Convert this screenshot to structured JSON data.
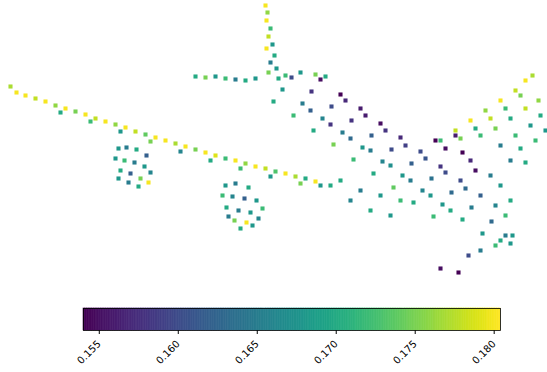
{
  "chart_data": {
    "type": "scatter",
    "marker": "square",
    "color": "viridis",
    "tick_labels": false,
    "xlim": [
      0,
      547
    ],
    "ylim": [
      300,
      0
    ],
    "x": [
      10,
      16,
      25,
      35,
      45,
      55,
      65,
      75,
      85,
      95,
      105,
      115,
      125,
      135,
      145,
      155,
      165,
      175,
      185,
      195,
      205,
      215,
      225,
      235,
      245,
      255,
      265,
      275,
      285,
      295,
      305,
      315,
      60,
      90,
      120,
      150,
      180,
      210,
      240,
      270,
      300,
      330,
      118,
      126,
      136,
      146,
      115,
      124,
      134,
      144,
      150,
      120,
      130,
      140,
      148,
      128,
      138,
      118,
      225,
      235,
      248,
      222,
      232,
      244,
      256,
      226,
      238,
      250,
      262,
      234,
      246,
      258,
      240,
      252,
      228,
      265,
      267,
      266,
      270,
      268,
      272,
      266,
      274,
      270,
      276,
      268,
      278,
      195,
      205,
      215,
      225,
      235,
      245,
      255,
      285,
      300,
      315,
      325,
      291,
      282,
      273,
      320,
      311,
      302,
      293,
      340,
      331,
      322,
      313,
      360,
      351,
      342,
      333,
      380,
      371,
      362,
      353,
      400,
      391,
      382,
      373,
      420,
      411,
      402,
      393,
      440,
      431,
      422,
      413,
      460,
      451,
      442,
      433,
      480,
      471,
      462,
      491,
      482,
      310,
      330,
      350,
      370,
      390,
      410,
      430,
      450,
      345,
      365,
      385,
      405,
      425,
      445,
      465,
      500,
      505,
      495,
      510,
      440,
      455,
      470,
      485,
      500,
      515,
      525,
      532,
      520,
      505,
      490,
      475,
      460,
      480,
      495,
      510,
      525,
      538,
      540,
      530,
      515,
      500,
      520,
      535,
      545,
      510,
      525,
      435,
      445,
      455,
      462,
      470,
      475,
      490,
      500,
      510,
      495,
      505,
      512,
      440,
      458,
      468,
      480,
      320,
      340,
      360,
      380,
      400,
      350,
      370,
      390
    ],
    "y": [
      86,
      92,
      95,
      98,
      101,
      105,
      108,
      111,
      114,
      118,
      121,
      124,
      127,
      131,
      134,
      137,
      140,
      143,
      146,
      149,
      152,
      155,
      158,
      160,
      163,
      166,
      168,
      171,
      173,
      176,
      178,
      181,
      112,
      121,
      131,
      141,
      151,
      160,
      168,
      176,
      183,
      185,
      148,
      147,
      149,
      155,
      158,
      160,
      162,
      166,
      172,
      170,
      173,
      178,
      182,
      182,
      186,
      178,
      185,
      183,
      187,
      195,
      196,
      198,
      200,
      207,
      210,
      212,
      208,
      220,
      222,
      218,
      228,
      225,
      216,
      5,
      12,
      20,
      28,
      36,
      44,
      48,
      55,
      62,
      68,
      72,
      78,
      76,
      77,
      76,
      78,
      79,
      80,
      78,
      75,
      72,
      74,
      76,
      77,
      89,
      101,
      79,
      91,
      103,
      115,
      94,
      106,
      118,
      130,
      108,
      120,
      132,
      144,
      123,
      135,
      147,
      159,
      137,
      149,
      161,
      173,
      151,
      163,
      175,
      187,
      166,
      178,
      190,
      202,
      180,
      192,
      204,
      216,
      195,
      207,
      219,
      221,
      233,
      110,
      124,
      138,
      150,
      165,
      180,
      195,
      210,
      100,
      115,
      130,
      145,
      158,
      172,
      188,
      240,
      235,
      245,
      243,
      140,
      130,
      120,
      110,
      100,
      90,
      80,
      75,
      95,
      108,
      118,
      128,
      138,
      135,
      128,
      118,
      108,
      100,
      115,
      125,
      135,
      145,
      148,
      140,
      130,
      160,
      162,
      140,
      148,
      135,
      152,
      160,
      170,
      175,
      185,
      200,
      205,
      215,
      235,
      268,
      272,
      255,
      250,
      185,
      180,
      190,
      195,
      200,
      200,
      210,
      215
    ],
    "values": [
      0.177,
      0.18,
      0.18,
      0.178,
      0.18,
      0.176,
      0.18,
      0.175,
      0.18,
      0.178,
      0.18,
      0.176,
      0.18,
      0.178,
      0.174,
      0.18,
      0.18,
      0.177,
      0.18,
      0.175,
      0.18,
      0.179,
      0.172,
      0.18,
      0.176,
      0.18,
      0.178,
      0.173,
      0.18,
      0.177,
      0.17,
      0.18,
      0.17,
      0.172,
      0.168,
      0.175,
      0.166,
      0.17,
      0.172,
      0.168,
      0.175,
      0.17,
      0.168,
      0.165,
      0.17,
      0.162,
      0.168,
      0.172,
      0.165,
      0.168,
      0.166,
      0.17,
      0.162,
      0.175,
      0.18,
      0.165,
      0.17,
      0.168,
      0.168,
      0.165,
      0.17,
      0.172,
      0.166,
      0.162,
      0.168,
      0.17,
      0.165,
      0.168,
      0.172,
      0.175,
      0.18,
      0.166,
      0.17,
      0.168,
      0.165,
      0.18,
      0.176,
      0.18,
      0.172,
      0.178,
      0.168,
      0.18,
      0.17,
      0.165,
      0.168,
      0.175,
      0.17,
      0.17,
      0.175,
      0.168,
      0.172,
      0.165,
      0.17,
      0.168,
      0.172,
      0.168,
      0.175,
      0.17,
      0.16,
      0.168,
      0.17,
      0.155,
      0.158,
      0.165,
      0.172,
      0.154,
      0.16,
      0.166,
      0.17,
      0.156,
      0.158,
      0.165,
      0.175,
      0.155,
      0.162,
      0.168,
      0.172,
      0.157,
      0.16,
      0.166,
      0.17,
      0.16,
      0.162,
      0.168,
      0.174,
      0.158,
      0.164,
      0.166,
      0.17,
      0.16,
      0.163,
      0.168,
      0.172,
      0.162,
      0.165,
      0.17,
      0.163,
      0.168,
      0.162,
      0.158,
      0.163,
      0.165,
      0.167,
      0.165,
      0.168,
      0.17,
      0.157,
      0.156,
      0.158,
      0.159,
      0.161,
      0.16,
      0.163,
      0.17,
      0.165,
      0.172,
      0.168,
      0.172,
      0.178,
      0.18,
      0.176,
      0.18,
      0.178,
      0.18,
      0.177,
      0.175,
      0.172,
      0.178,
      0.17,
      0.175,
      0.172,
      0.175,
      0.17,
      0.178,
      0.176,
      0.17,
      0.168,
      0.172,
      0.165,
      0.17,
      0.172,
      0.168,
      0.165,
      0.17,
      0.154,
      0.155,
      0.156,
      0.154,
      0.157,
      0.155,
      0.165,
      0.168,
      0.17,
      0.166,
      0.172,
      0.168,
      0.155,
      0.154,
      0.16,
      0.165,
      0.168,
      0.17,
      0.165,
      0.168,
      0.172,
      0.166,
      0.17,
      0.168
    ],
    "colorbar": {
      "range": [
        0.154,
        0.1804
      ],
      "ticks": [
        0.155,
        {
          "value": 0.16,
          "label": "0.160"
        },
        0.165,
        {
          "value": 0.17,
          "label": "0.170"
        },
        0.175,
        {
          "value": 0.18,
          "label": "0.180"
        }
      ]
    }
  }
}
